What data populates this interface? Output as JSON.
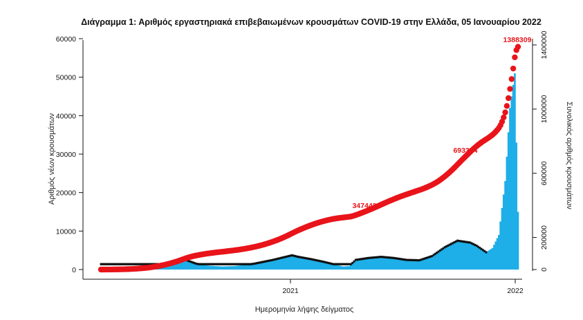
{
  "chart_data": {
    "type": "bar+line",
    "title": "Διάγραμμα 1: Αριθμός εργαστηριακά επιβεβαιωμένων κρουσμάτων COVID-19 στην Ελλάδα, 05 Ιανουαρίου 2022",
    "xlabel": "Ημερομηνία λήψης δείγματος",
    "ylabel_left": "Αριθμός νέων κρουσμάτων",
    "ylabel_right": "Συνολικός αριθμός κρουσμάτων",
    "x_ticks": [
      "2021",
      "2022"
    ],
    "y_left": {
      "lim": [
        0,
        60000
      ],
      "ticks": [
        0,
        10000,
        20000,
        30000,
        40000,
        50000,
        60000
      ]
    },
    "y_right": {
      "lim": [
        0,
        1400000
      ],
      "ticks": [
        0,
        200000,
        600000,
        1000000,
        1400000
      ]
    },
    "colors": {
      "bars": "#1eaee8",
      "cumulative": "#e8141a",
      "moving_average": "#111111"
    },
    "daily_profile": [
      [
        0,
        0
      ],
      [
        8,
        200
      ],
      [
        14,
        700
      ],
      [
        20,
        1600
      ],
      [
        22,
        2000
      ],
      [
        24,
        2300
      ],
      [
        26,
        2700
      ],
      [
        30,
        1500
      ],
      [
        34,
        1000
      ],
      [
        38,
        800
      ],
      [
        42,
        900
      ],
      [
        48,
        1500
      ],
      [
        54,
        2500
      ],
      [
        58,
        3300
      ],
      [
        60,
        3700
      ],
      [
        62,
        3300
      ],
      [
        66,
        2700
      ],
      [
        70,
        2000
      ],
      [
        74,
        1200
      ],
      [
        76,
        800
      ],
      [
        78,
        900
      ],
      [
        80,
        2500
      ],
      [
        84,
        3000
      ],
      [
        88,
        3300
      ],
      [
        92,
        3000
      ],
      [
        96,
        2500
      ],
      [
        100,
        2400
      ],
      [
        104,
        3500
      ],
      [
        108,
        5800
      ],
      [
        112,
        7500
      ],
      [
        116,
        7000
      ],
      [
        118,
        6200
      ],
      [
        121,
        4500
      ],
      [
        123,
        5600
      ],
      [
        125,
        9000
      ],
      [
        127,
        23000
      ],
      [
        128.5,
        42000
      ],
      [
        130,
        51000
      ],
      [
        131,
        15000
      ]
    ],
    "cumulative_annotations": [
      {
        "label": "347443",
        "at_week": 80,
        "value": 347443
      },
      {
        "label": "693384",
        "at_week": 113,
        "value": 693384
      },
      {
        "label": "1388309",
        "at_week": 131,
        "value": 1388309
      }
    ]
  }
}
